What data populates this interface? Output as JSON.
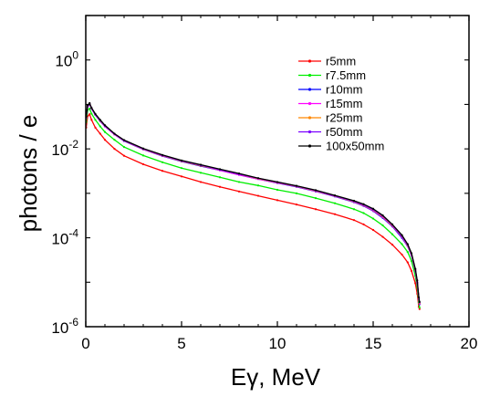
{
  "chart_data": {
    "type": "line",
    "title": "",
    "xlabel": "Eγ, MeV",
    "ylabel": "photons / e",
    "xlim": [
      0,
      20
    ],
    "ylim": [
      1e-06,
      10
    ],
    "yscale": "log",
    "grid": false,
    "legend_position": "top-right",
    "x_ticks": [
      0,
      5,
      10,
      15,
      20
    ],
    "y_ticks": [
      {
        "value": 1,
        "base": "10",
        "exp": "0"
      },
      {
        "value": 0.01,
        "base": "10",
        "exp": "-2"
      },
      {
        "value": 0.0001,
        "base": "10",
        "exp": "-4"
      },
      {
        "value": 1e-06,
        "base": "10",
        "exp": "-6"
      }
    ],
    "x": [
      0.02,
      0.1,
      0.2,
      0.3,
      0.5,
      0.75,
      1,
      1.5,
      2,
      3,
      4,
      5,
      6,
      7,
      8,
      9,
      10,
      11,
      12,
      13,
      14,
      14.5,
      15,
      15.5,
      16,
      16.5,
      16.8,
      17,
      17.2,
      17.3,
      17.38,
      17.42
    ],
    "series": [
      {
        "name": "r5mm",
        "color": "#ff0000",
        "values": [
          0.03,
          0.055,
          0.06,
          0.045,
          0.03,
          0.022,
          0.016,
          0.01,
          0.007,
          0.0045,
          0.0032,
          0.0024,
          0.0018,
          0.0014,
          0.0011,
          0.00088,
          0.0007,
          0.00056,
          0.00044,
          0.00034,
          0.00025,
          0.0002,
          0.00015,
          0.000105,
          7e-05,
          4.2e-05,
          2.8e-05,
          1.8e-05,
          9.5e-06,
          5.5e-06,
          2.8e-06,
          2.5e-06
        ]
      },
      {
        "name": "r7.5mm",
        "color": "#00ee00",
        "values": [
          0.04,
          0.075,
          0.08,
          0.062,
          0.045,
          0.032,
          0.024,
          0.016,
          0.011,
          0.0071,
          0.005,
          0.0037,
          0.0029,
          0.0023,
          0.0018,
          0.0015,
          0.0012,
          0.001,
          0.00078,
          0.0006,
          0.00044,
          0.00036,
          0.00027,
          0.00019,
          0.00012,
          7.2e-05,
          4.8e-05,
          3e-05,
          1.4e-05,
          7.5e-06,
          3.5e-06,
          2.7e-06
        ]
      },
      {
        "name": "r10mm",
        "color": "#0000ff",
        "values": [
          0.05,
          0.09,
          0.1,
          0.08,
          0.058,
          0.042,
          0.032,
          0.021,
          0.015,
          0.0097,
          0.0069,
          0.0052,
          0.0041,
          0.0033,
          0.0026,
          0.0021,
          0.0017,
          0.0014,
          0.0011,
          0.00085,
          0.00063,
          0.00052,
          0.0004,
          0.00028,
          0.00018,
          0.0001,
          6.5e-05,
          4e-05,
          1.8e-05,
          9.5e-06,
          4.2e-06,
          3.2e-06
        ]
      },
      {
        "name": "r15mm",
        "color": "#ff00ff",
        "values": [
          0.051,
          0.092,
          0.102,
          0.081,
          0.059,
          0.043,
          0.032,
          0.021,
          0.0152,
          0.0098,
          0.007,
          0.0053,
          0.0042,
          0.0033,
          0.0026,
          0.0021,
          0.00172,
          0.00142,
          0.00112,
          0.00086,
          0.00064,
          0.00053,
          0.00041,
          0.00029,
          0.000185,
          0.000105,
          6.6e-05,
          4.1e-05,
          1.85e-05,
          9.7e-06,
          4.3e-06,
          3.3e-06
        ]
      },
      {
        "name": "r25mm",
        "color": "#ff8800",
        "values": [
          0.052,
          0.094,
          0.104,
          0.082,
          0.06,
          0.043,
          0.033,
          0.0215,
          0.0154,
          0.0099,
          0.0071,
          0.0053,
          0.0042,
          0.0034,
          0.0027,
          0.00215,
          0.00175,
          0.00144,
          0.00114,
          0.00087,
          0.00065,
          0.00054,
          0.00042,
          0.0003,
          0.00019,
          0.000108,
          6.8e-05,
          4.2e-05,
          1.9e-05,
          9.9e-06,
          4.4e-06,
          3.4e-06
        ]
      },
      {
        "name": "r50mm",
        "color": "#7b00ff",
        "values": [
          0.052,
          0.095,
          0.105,
          0.083,
          0.06,
          0.044,
          0.033,
          0.0217,
          0.0155,
          0.01,
          0.0072,
          0.0054,
          0.0043,
          0.0034,
          0.0027,
          0.00218,
          0.00177,
          0.00146,
          0.00116,
          0.00088,
          0.00066,
          0.00055,
          0.00043,
          0.00031,
          0.000195,
          0.00011,
          7e-05,
          4.3e-05,
          1.95e-05,
          1e-05,
          4.5e-06,
          3.5e-06
        ]
      },
      {
        "name": "100x50mm",
        "color": "#000000",
        "values": [
          0.053,
          0.096,
          0.107,
          0.084,
          0.061,
          0.045,
          0.034,
          0.022,
          0.0158,
          0.0102,
          0.0073,
          0.0055,
          0.0044,
          0.0035,
          0.0028,
          0.0022,
          0.0018,
          0.00148,
          0.00118,
          0.0009,
          0.00068,
          0.00057,
          0.00045,
          0.00032,
          0.0002,
          0.000115,
          7.2e-05,
          4.5e-05,
          2e-05,
          1.1e-05,
          4.6e-06,
          3.6e-06
        ]
      }
    ]
  }
}
